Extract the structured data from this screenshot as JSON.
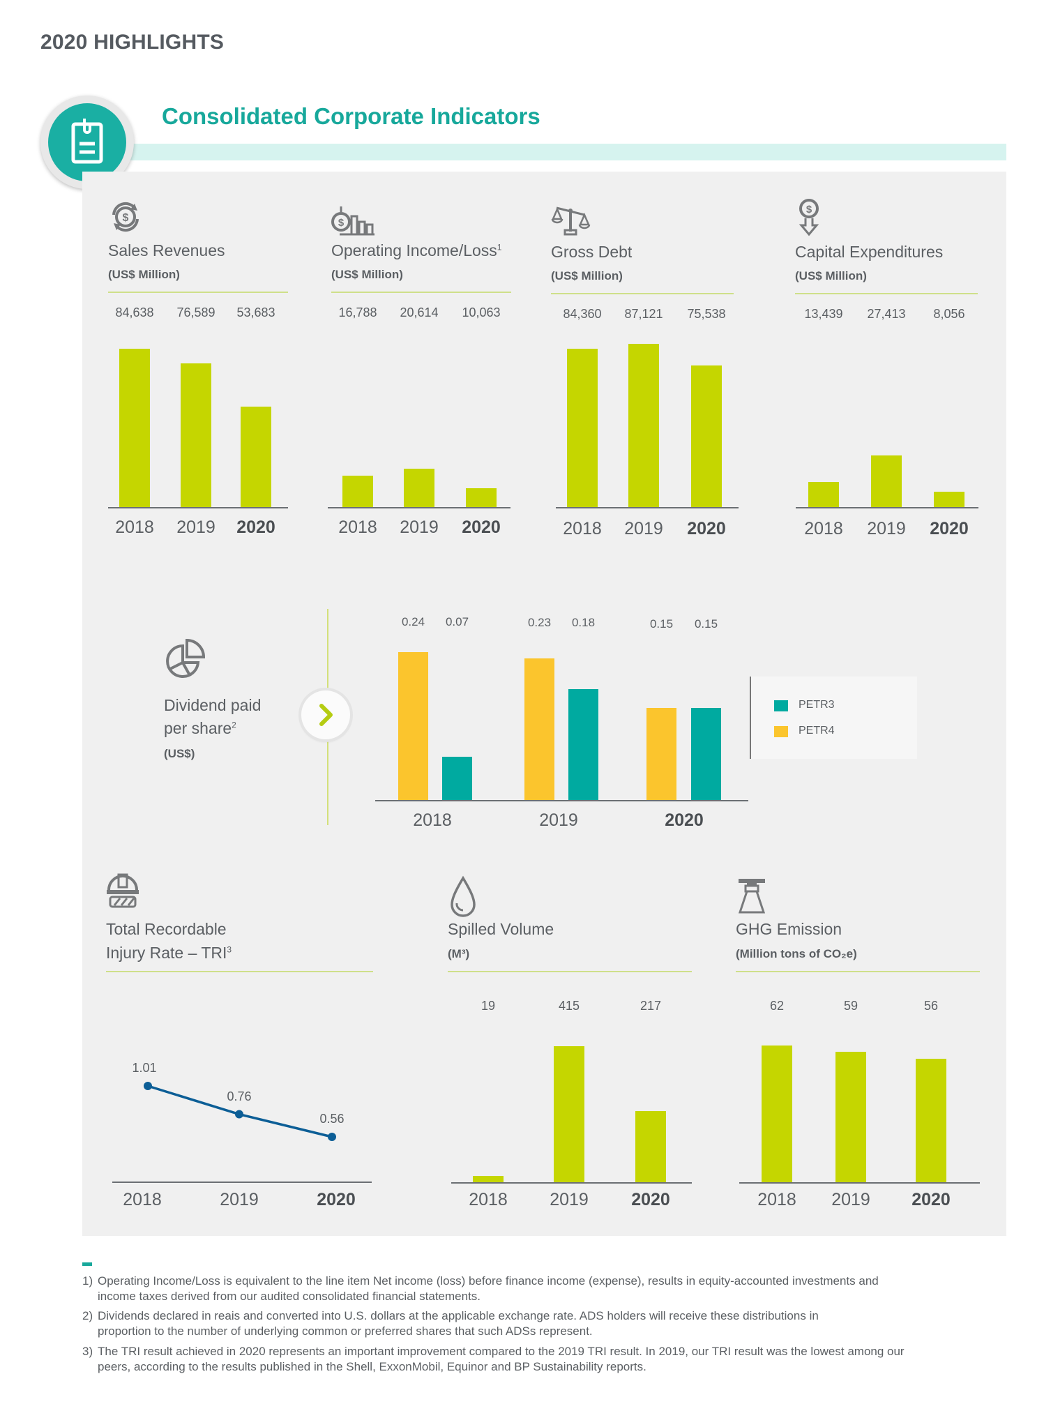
{
  "page": {
    "title": "2020 HIGHLIGHTS",
    "section_title": "Consolidated Corporate Indicators",
    "section_icon": "clipboard-icon"
  },
  "colors": {
    "accent_teal": "#17a89b",
    "bar_green": "#c5d600",
    "petr3_teal": "#00aaa0",
    "petr4_yellow": "#fbc52d",
    "line_blue": "#0c5e96"
  },
  "chart_data": [
    {
      "id": "sales_revenues",
      "type": "bar",
      "icon": "dollar-cycle-icon",
      "title": "Sales Revenues",
      "unit": "(US$ Million)",
      "categories": [
        "2018",
        "2019",
        "2020"
      ],
      "values": [
        84638,
        76589,
        53683
      ],
      "value_labels": [
        "84,638",
        "76,589",
        "53,683"
      ],
      "ylim": [
        0,
        87121
      ],
      "grid": false,
      "highlight_category": "2020"
    },
    {
      "id": "operating_income",
      "type": "bar",
      "icon": "dollar-bars-icon",
      "title": "Operating Income/Loss",
      "title_sup": "1",
      "unit": "(US$ Million)",
      "categories": [
        "2018",
        "2019",
        "2020"
      ],
      "values": [
        16788,
        20614,
        10063
      ],
      "value_labels": [
        "16,788",
        "20,614",
        "10,063"
      ],
      "ylim": [
        0,
        87121
      ],
      "grid": false,
      "highlight_category": "2020"
    },
    {
      "id": "gross_debt",
      "type": "bar",
      "icon": "scales-icon",
      "title": "Gross Debt",
      "unit": "(US$ Million)",
      "categories": [
        "2018",
        "2019",
        "2020"
      ],
      "values": [
        84360,
        87121,
        75538
      ],
      "value_labels": [
        "84,360",
        "87,121",
        "75,538"
      ],
      "ylim": [
        0,
        87121
      ],
      "grid": false,
      "highlight_category": "2020"
    },
    {
      "id": "capital_expenditures",
      "type": "bar",
      "icon": "dollar-down-arrow-icon",
      "title": "Capital Expenditures",
      "unit": "(US$ Million)",
      "categories": [
        "2018",
        "2019",
        "2020"
      ],
      "values": [
        13439,
        27413,
        8056
      ],
      "value_labels": [
        "13,439",
        "27,413",
        "8,056"
      ],
      "ylim": [
        0,
        87121
      ],
      "grid": false,
      "highlight_category": "2020"
    },
    {
      "id": "dividends",
      "type": "bar",
      "icon": "pie-chart-icon",
      "title_line1": "Dividend paid",
      "title_line2": "per share",
      "title_sup": "2",
      "unit": "(US$)",
      "categories": [
        "2018",
        "2019",
        "2020"
      ],
      "series": [
        {
          "name": "PETR4",
          "values": [
            0.24,
            0.23,
            0.15
          ],
          "value_labels": [
            "0.24",
            "0.23",
            "0.15"
          ]
        },
        {
          "name": "PETR3",
          "values": [
            0.07,
            0.18,
            0.15
          ],
          "value_labels": [
            "0.07",
            "0.18",
            "0.15"
          ]
        }
      ],
      "legend": [
        "PETR3",
        "PETR4"
      ],
      "legend_position": "right",
      "ylim": [
        0,
        0.24
      ],
      "grid": false,
      "highlight_category": "2020"
    },
    {
      "id": "tri",
      "type": "line",
      "icon": "hard-hat-icon",
      "title_line1": "Total Recordable",
      "title_line2": "Injury Rate – TRI",
      "title_sup": "3",
      "categories": [
        "2018",
        "2019",
        "2020"
      ],
      "values": [
        1.01,
        0.76,
        0.56
      ],
      "value_labels": [
        "1.01",
        "0.76",
        "0.56"
      ],
      "ylim": [
        0,
        1.2
      ],
      "grid": false,
      "highlight_category": "2020"
    },
    {
      "id": "spilled_volume",
      "type": "bar",
      "icon": "drop-icon",
      "title": "Spilled Volume",
      "unit": "(M³)",
      "categories": [
        "2018",
        "2019",
        "2020"
      ],
      "values": [
        19,
        415,
        217
      ],
      "value_labels": [
        "19",
        "415",
        "217"
      ],
      "ylim": [
        0,
        415
      ],
      "grid": false,
      "highlight_category": "2020"
    },
    {
      "id": "ghg_emission",
      "type": "bar",
      "icon": "chimney-icon",
      "title": "GHG Emission",
      "unit": "(Million tons of CO₂e)",
      "categories": [
        "2018",
        "2019",
        "2020"
      ],
      "values": [
        62,
        59,
        56
      ],
      "value_labels": [
        "62",
        "59",
        "56"
      ],
      "ylim": [
        0,
        62
      ],
      "grid": false,
      "highlight_category": "2020"
    }
  ],
  "footnotes": [
    {
      "num": "1)",
      "line1": "Operating Income/Loss is equivalent to the line item Net income (loss) before finance income (expense), results in equity-accounted investments and",
      "line2": "income taxes derived from our audited consolidated financial statements."
    },
    {
      "num": "2)",
      "line1": "Dividends declared in reais and converted into U.S. dollars at the applicable exchange rate. ADS holders will receive these distributions in",
      "line2": "proportion to the number of underlying common or preferred shares that such ADSs represent."
    },
    {
      "num": "3)",
      "line1": "The TRI result achieved in 2020 represents an important improvement compared to the 2019 TRI result. In 2019, our TRI result was the lowest among our",
      "line2": "peers, according to the results published in the Shell, ExxonMobil, Equinor and BP Sustainability reports."
    }
  ]
}
